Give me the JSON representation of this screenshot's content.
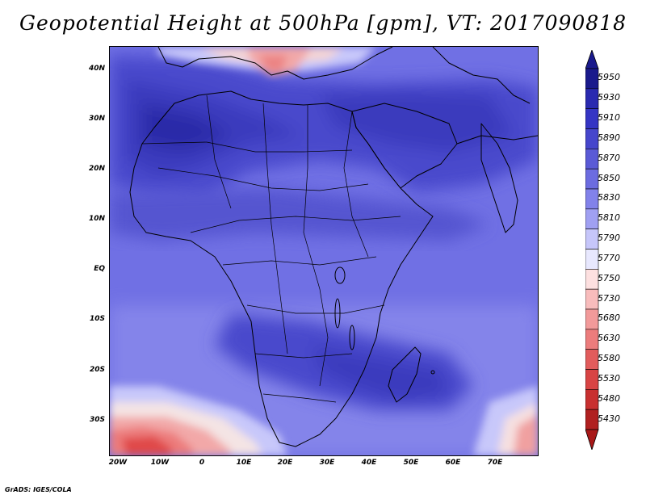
{
  "title": "Geopotential Height at 500hPa [gpm], VT: 2017090818",
  "lat_labels": [
    "40N",
    "30N",
    "20N",
    "10N",
    "EQ",
    "10S",
    "20S",
    "30S"
  ],
  "lon_labels": [
    "20W",
    "10W",
    "0",
    "10E",
    "20E",
    "30E",
    "40E",
    "50E",
    "60E",
    "70E"
  ],
  "colorbar": {
    "levels": [
      "5950",
      "5930",
      "5910",
      "5890",
      "5870",
      "5850",
      "5830",
      "5810",
      "5790",
      "5770",
      "5750",
      "5730",
      "5680",
      "5630",
      "5580",
      "5530",
      "5480",
      "5430"
    ],
    "colors": [
      "#1a1a8c",
      "#2a2ab0",
      "#3535c4",
      "#4646cc",
      "#5a5ad6",
      "#6c6ce0",
      "#8282ea",
      "#a0a0f2",
      "#c6c6fa",
      "#e8e8fe",
      "#fde0e0",
      "#f8bcbc",
      "#f29a9a",
      "#ec7c7c",
      "#e25c5c",
      "#d84444",
      "#c83030",
      "#b02020"
    ],
    "top_arrow_color": "#1a1a8c",
    "bottom_arrow_color": "#a81818"
  },
  "credit": "GrADS: IGES/COLA"
}
